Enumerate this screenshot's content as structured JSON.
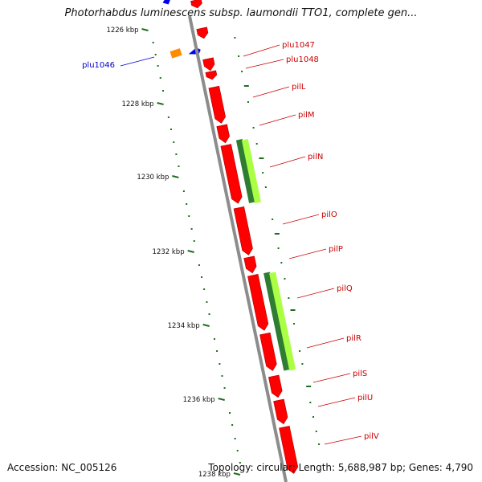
{
  "title": "Photorhabdus luminescens subsp. laumondii TTO1, complete gen...",
  "footer": {
    "accession": "Accession: NC_005126",
    "summary": "Topology: circular; Length: 5,688,987 bp; Genes: 4,790"
  },
  "colors": {
    "backbone": "#8c8c8c",
    "tick": "#1e6e1e",
    "forward_gene": "#ff0000",
    "reverse_gene": "#0000ee",
    "orange_gene": "#ff8c00",
    "rrna_light": "#aaff44",
    "rrna_dark": "#2e7d32",
    "label_red": "#cc0000",
    "label_blue": "#0000cc"
  },
  "ticks": [
    {
      "label": "1226 kbp"
    },
    {
      "label": "1228 kbp"
    },
    {
      "label": "1230 kbp"
    },
    {
      "label": "1232 kbp"
    },
    {
      "label": "1234 kbp"
    },
    {
      "label": "1236 kbp"
    },
    {
      "label": "1238 kbp"
    }
  ],
  "gene_labels": [
    {
      "name": "plu1046",
      "color": "blue"
    },
    {
      "name": "plu1047",
      "color": "red"
    },
    {
      "name": "plu1048",
      "color": "red"
    },
    {
      "name": "pilL",
      "color": "red"
    },
    {
      "name": "pilM",
      "color": "red"
    },
    {
      "name": "pilN",
      "color": "red"
    },
    {
      "name": "pilO",
      "color": "red"
    },
    {
      "name": "pilP",
      "color": "red"
    },
    {
      "name": "pilQ",
      "color": "red"
    },
    {
      "name": "pilR",
      "color": "red"
    },
    {
      "name": "pilS",
      "color": "red"
    },
    {
      "name": "pilU",
      "color": "red"
    },
    {
      "name": "pilV",
      "color": "red"
    }
  ]
}
